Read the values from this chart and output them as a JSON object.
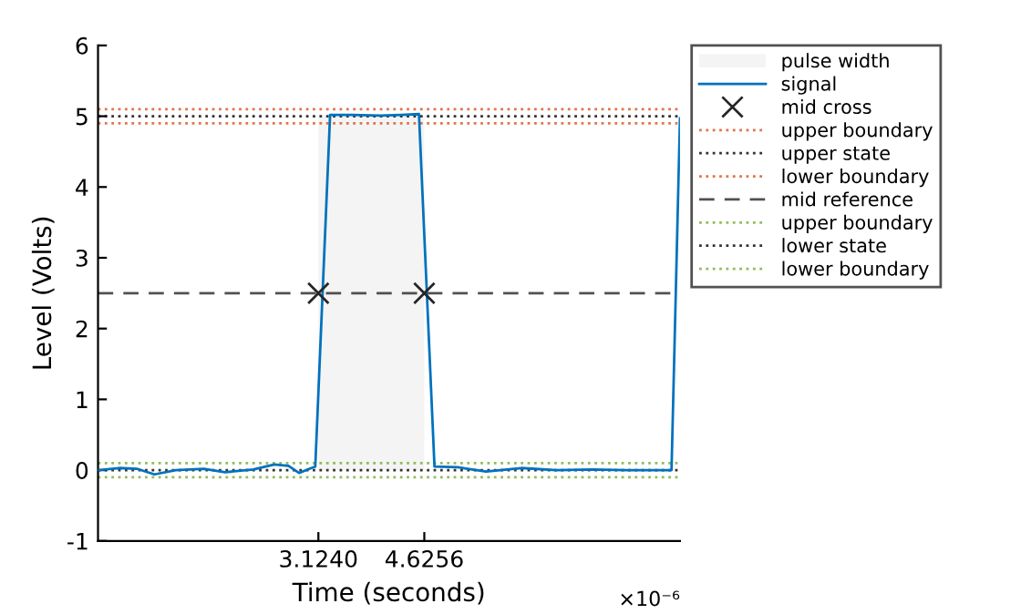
{
  "chart_data": {
    "type": "line",
    "xlabel": "Time (seconds)",
    "ylabel": "Level (Volts)",
    "xlim": [
      0,
      8.25
    ],
    "xticks": [
      {
        "value": 3.124,
        "label": "3.1240"
      },
      {
        "value": 4.6256,
        "label": "4.6256"
      }
    ],
    "ylim": [
      -1,
      6
    ],
    "yticks": [
      -1,
      0,
      1,
      2,
      3,
      4,
      5,
      6
    ],
    "grid": false,
    "legend": "right",
    "series": [
      {
        "name": "pulse width",
        "type": "area",
        "color": "#f4f4f4",
        "x": [
          3.124,
          4.6256
        ],
        "values": [
          5.0,
          5.0
        ]
      },
      {
        "name": "signal",
        "type": "line",
        "color": "#0072bd",
        "marker": "none",
        "line_style": "solid",
        "x": [
          0,
          0.3,
          0.55,
          0.8,
          1.1,
          1.5,
          1.8,
          2.2,
          2.5,
          2.7,
          2.85,
          3.0,
          3.08,
          3.29,
          3.6,
          4.0,
          4.3,
          4.55,
          4.77,
          5.1,
          5.5,
          6.0,
          6.5,
          7.0,
          7.5,
          8.13,
          8.25
        ],
        "values": [
          0.0,
          0.03,
          0.02,
          -0.06,
          0.0,
          0.02,
          -0.03,
          0.01,
          0.08,
          0.06,
          -0.04,
          0.02,
          0.05,
          5.02,
          5.02,
          5.01,
          5.02,
          5.03,
          0.05,
          0.04,
          -0.02,
          0.03,
          0.0,
          0.01,
          0.0,
          0.0,
          4.97
        ]
      },
      {
        "name": "mid cross",
        "type": "scatter",
        "color": "#262626",
        "marker": "cross",
        "x": [
          3.124,
          4.6256
        ],
        "values": [
          2.5,
          2.5
        ]
      }
    ],
    "ref_lines": [
      {
        "axis": "y",
        "value": 5.1,
        "label": "upper boundary",
        "color": "#d95319",
        "line_style": "dotted"
      },
      {
        "axis": "y",
        "value": 5.0,
        "label": "upper state",
        "color": "#000000",
        "line_style": "dotted"
      },
      {
        "axis": "y",
        "value": 4.9,
        "label": "lower boundary",
        "color": "#d95319",
        "line_style": "dotted"
      },
      {
        "axis": "y",
        "value": 2.5,
        "label": "mid reference",
        "color": "#262626",
        "line_style": "dashed"
      },
      {
        "axis": "y",
        "value": 0.1,
        "label": "upper boundary",
        "color": "#77ac30",
        "line_style": "dotted"
      },
      {
        "axis": "y",
        "value": 0.0,
        "label": "lower state",
        "color": "#000000",
        "line_style": "dotted"
      },
      {
        "axis": "y",
        "value": -0.1,
        "label": "lower boundary",
        "color": "#77ac30",
        "line_style": "dotted"
      }
    ],
    "annotations": [
      "×10⁻⁶"
    ]
  }
}
